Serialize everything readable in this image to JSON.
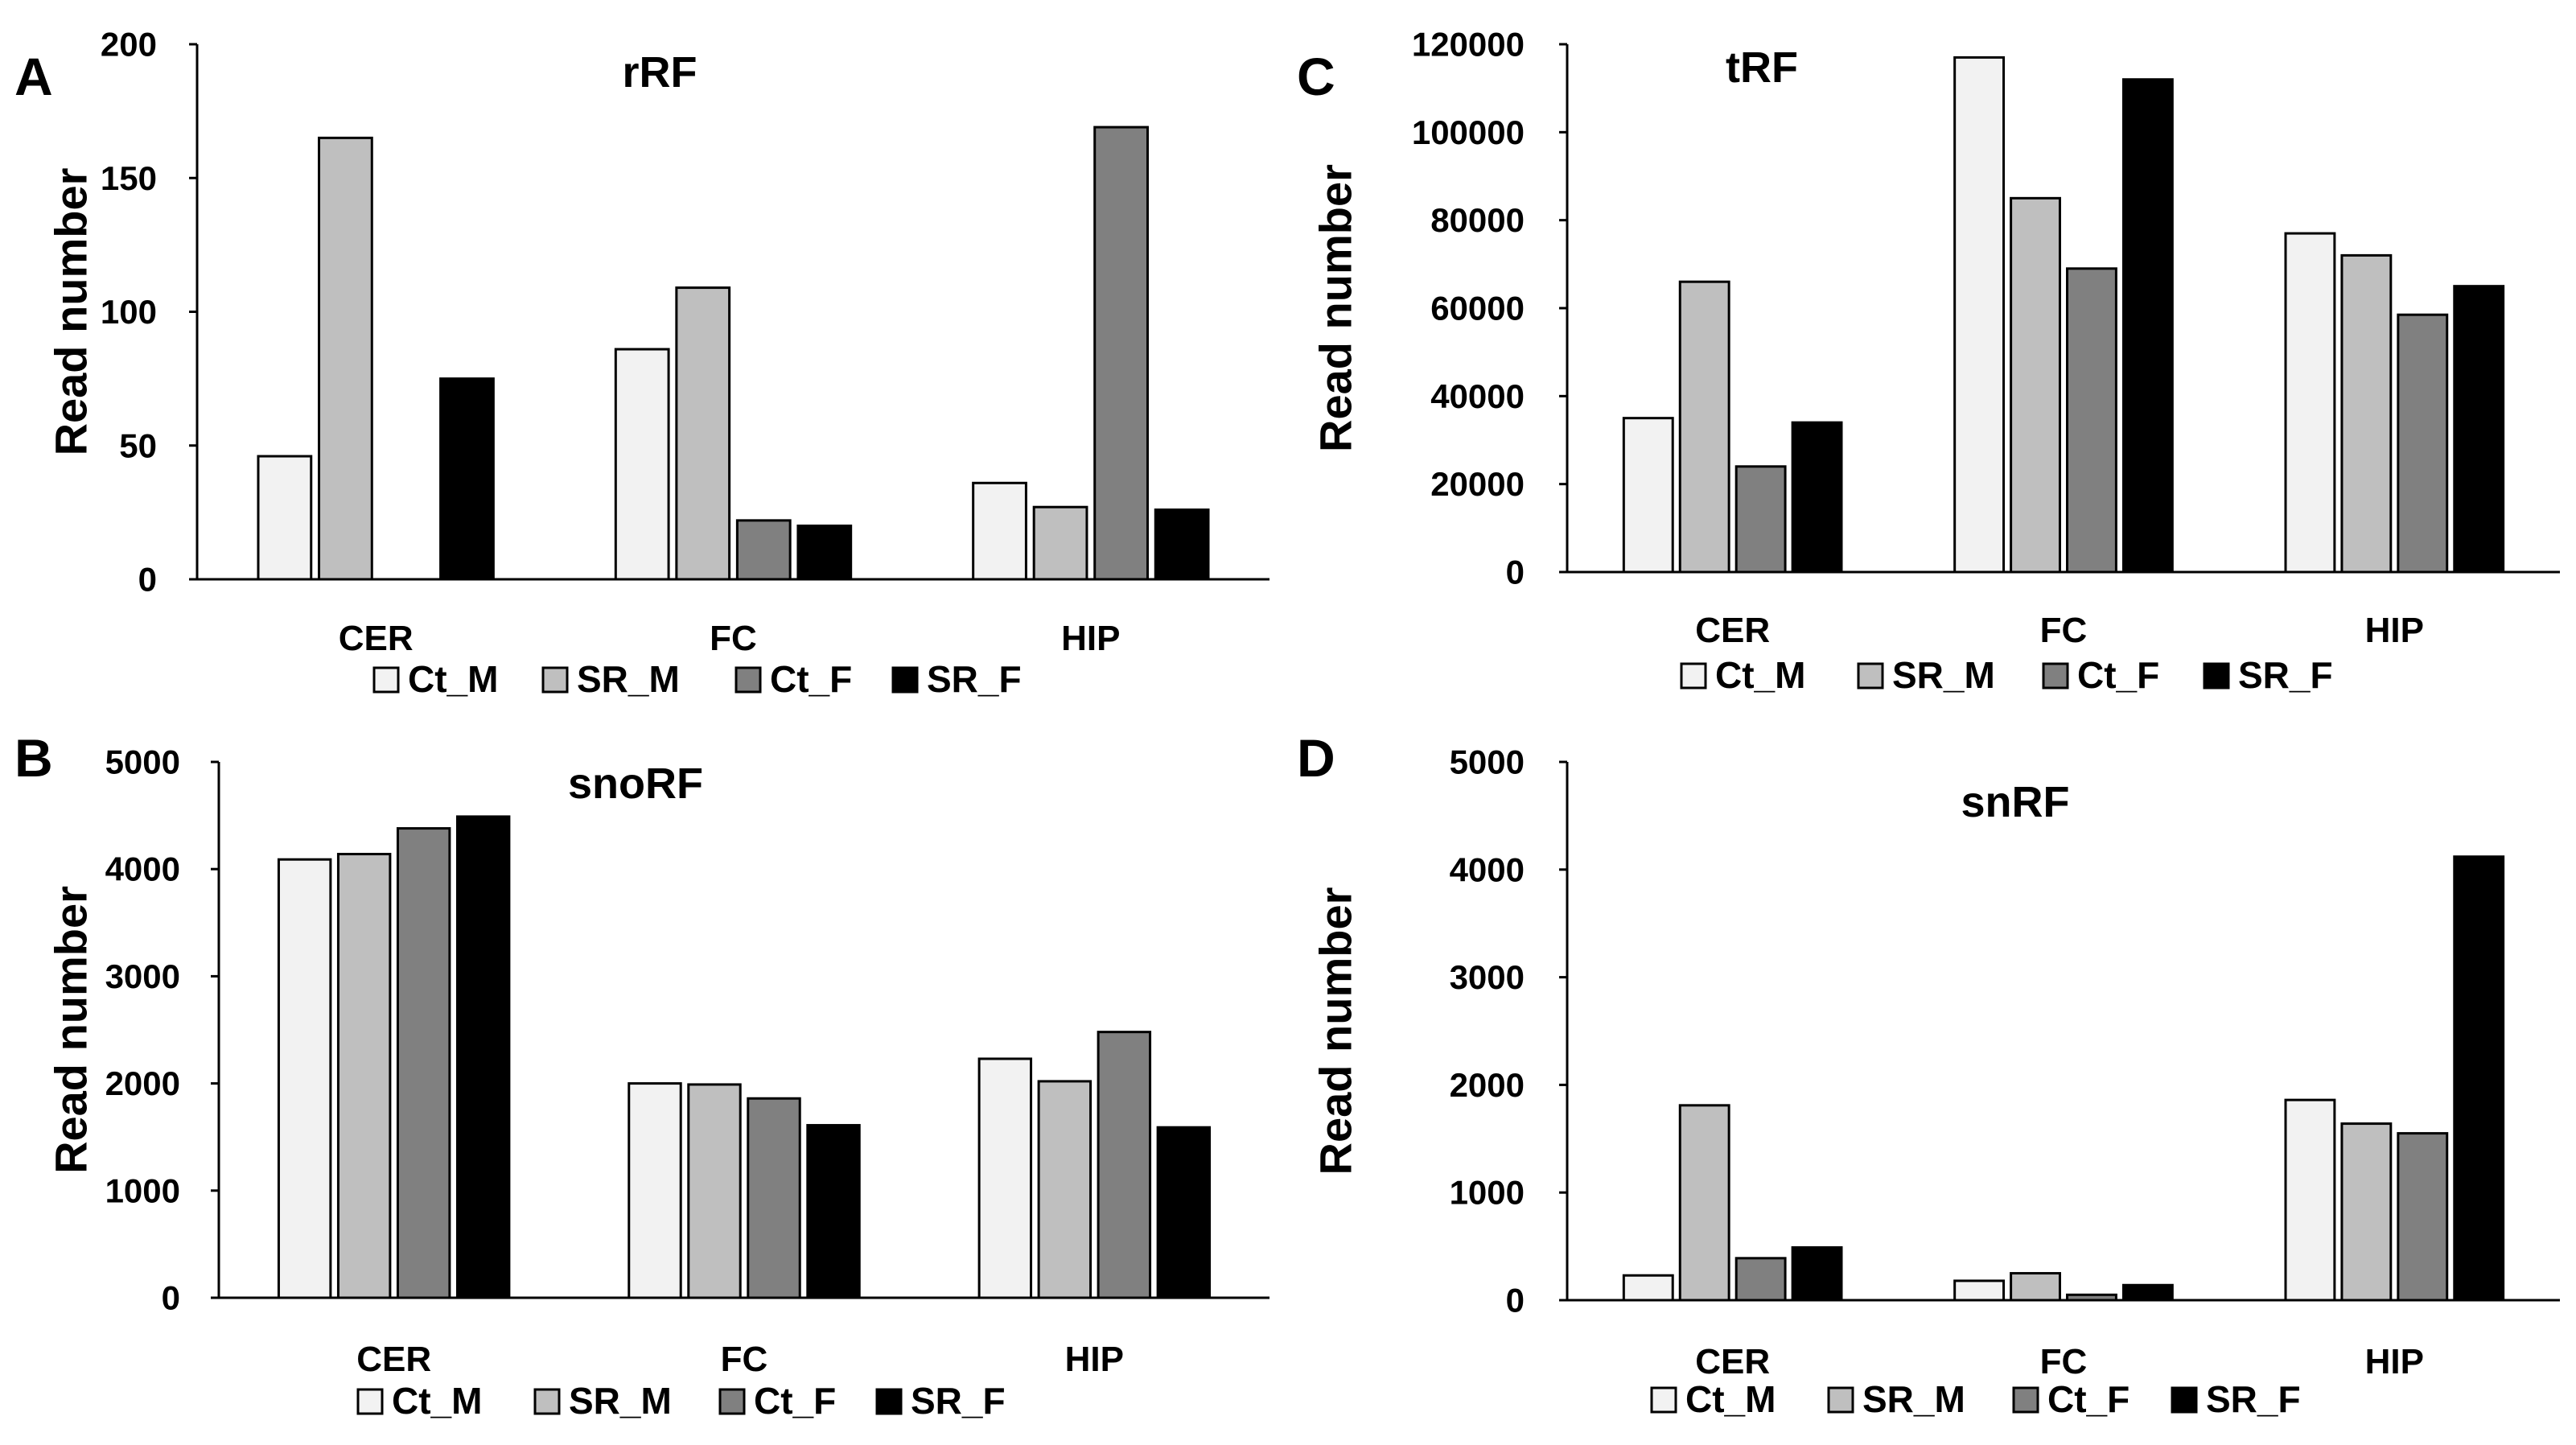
{
  "colors": {
    "Ct_M": "#f2f2f2",
    "SR_M": "#bfbfbf",
    "Ct_F": "#808080",
    "SR_F": "#000000",
    "outline": "#000000"
  },
  "chart_data": [
    {
      "panel": "A",
      "type": "bar",
      "title": "rRF",
      "ylabel": "Read number",
      "xlabel": "",
      "ylim": [
        0,
        200
      ],
      "yticks": [
        0,
        50,
        100,
        150,
        200
      ],
      "categories": [
        "CER",
        "FC",
        "HIP"
      ],
      "series": [
        {
          "name": "Ct_M",
          "values": [
            46,
            86,
            36
          ]
        },
        {
          "name": "SR_M",
          "values": [
            165,
            109,
            27
          ]
        },
        {
          "name": "Ct_F",
          "values": [
            0,
            22,
            169
          ]
        },
        {
          "name": "SR_F",
          "values": [
            75,
            20,
            26
          ]
        }
      ],
      "legend": "bottom"
    },
    {
      "panel": "B",
      "type": "bar",
      "title": "snoRF",
      "ylabel": "Read number",
      "xlabel": "",
      "ylim": [
        0,
        5000
      ],
      "yticks": [
        0,
        1000,
        2000,
        3000,
        4000,
        5000
      ],
      "categories": [
        "CER",
        "FC",
        "HIP"
      ],
      "series": [
        {
          "name": "Ct_M",
          "values": [
            4090,
            2000,
            2230
          ]
        },
        {
          "name": "SR_M",
          "values": [
            4140,
            1990,
            2020
          ]
        },
        {
          "name": "Ct_F",
          "values": [
            4380,
            1860,
            2480
          ]
        },
        {
          "name": "SR_F",
          "values": [
            4490,
            1610,
            1590
          ]
        }
      ],
      "legend": "bottom"
    },
    {
      "panel": "C",
      "type": "bar",
      "title": "tRF",
      "ylabel": "Read number",
      "xlabel": "",
      "ylim": [
        0,
        120000
      ],
      "yticks": [
        0,
        20000,
        40000,
        60000,
        80000,
        100000,
        120000
      ],
      "categories": [
        "CER",
        "FC",
        "HIP"
      ],
      "series": [
        {
          "name": "Ct_M",
          "values": [
            35000,
            117000,
            77000
          ]
        },
        {
          "name": "SR_M",
          "values": [
            66000,
            85000,
            72000
          ]
        },
        {
          "name": "Ct_F",
          "values": [
            24000,
            69000,
            58500
          ]
        },
        {
          "name": "SR_F",
          "values": [
            34000,
            112000,
            65000
          ]
        }
      ],
      "legend": "bottom"
    },
    {
      "panel": "D",
      "type": "bar",
      "title": "snRF",
      "ylabel": "Read number",
      "xlabel": "",
      "ylim": [
        0,
        5000
      ],
      "yticks": [
        0,
        1000,
        2000,
        3000,
        4000,
        5000
      ],
      "categories": [
        "CER",
        "FC",
        "HIP"
      ],
      "series": [
        {
          "name": "Ct_M",
          "values": [
            230,
            180,
            1860
          ]
        },
        {
          "name": "SR_M",
          "values": [
            1810,
            250,
            1640
          ]
        },
        {
          "name": "Ct_F",
          "values": [
            390,
            50,
            1550
          ]
        },
        {
          "name": "SR_F",
          "values": [
            490,
            140,
            4120
          ]
        }
      ],
      "legend": "bottom"
    }
  ]
}
